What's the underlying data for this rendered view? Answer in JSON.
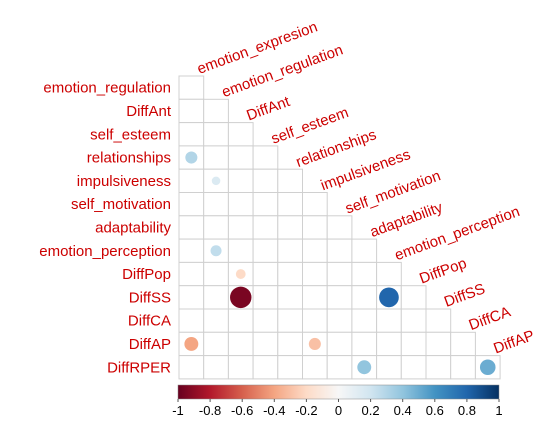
{
  "chart_data": {
    "type": "heatmap",
    "subtype": "correlation-matrix-lower-triangle",
    "title": "",
    "column_labels": [
      "emotion_expresion",
      "emotion_regulation",
      "DiffAnt",
      "self_esteem",
      "relationships",
      "impulsiveness",
      "self_motivation",
      "adaptability",
      "emotion_perception",
      "DiffPop",
      "DiffSS",
      "DiffCA",
      "DiffAP"
    ],
    "row_labels": [
      "emotion_regulation",
      "DiffAnt",
      "self_esteem",
      "relationships",
      "impulsiveness",
      "self_motivation",
      "adaptability",
      "emotion_perception",
      "DiffPop",
      "DiffSS",
      "DiffCA",
      "DiffAP",
      "DiffRPER"
    ],
    "cells": [
      {
        "row": "relationships",
        "col": "emotion_expresion",
        "value": 0.3
      },
      {
        "row": "impulsiveness",
        "col": "emotion_regulation",
        "value": 0.15
      },
      {
        "row": "emotion_perception",
        "col": "emotion_regulation",
        "value": 0.25
      },
      {
        "row": "DiffPop",
        "col": "DiffAnt",
        "value": -0.2
      },
      {
        "row": "DiffSS",
        "col": "DiffAnt",
        "value": -0.95
      },
      {
        "row": "DiffSS",
        "col": "emotion_perception",
        "value": 0.8
      },
      {
        "row": "DiffAP",
        "col": "emotion_expresion",
        "value": -0.4
      },
      {
        "row": "DiffAP",
        "col": "impulsiveness",
        "value": -0.3
      },
      {
        "row": "DiffRPER",
        "col": "adaptability",
        "value": 0.4
      },
      {
        "row": "DiffRPER",
        "col": "DiffAP",
        "value": 0.5
      }
    ],
    "colorbar": {
      "ticks": [
        "-1",
        "-0.8",
        "-0.6",
        "-0.4",
        "-0.2",
        "0",
        "0.2",
        "0.4",
        "0.6",
        "0.8",
        "1"
      ],
      "range": [
        -1,
        1
      ],
      "low_color": "#67001f",
      "mid_color": "#f7f7f7",
      "high_color": "#053061"
    },
    "label_color": "#cc0000",
    "grid": true
  }
}
